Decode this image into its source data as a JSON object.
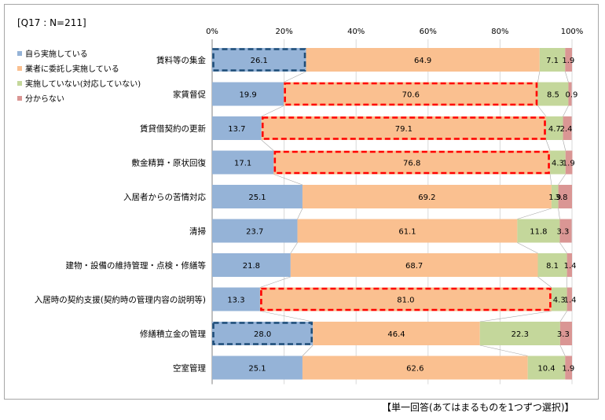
{
  "header": {
    "question_label": "[Q17 : N=211]"
  },
  "footnote": "【単一回答(あてはまるものを1つずつ選択)】",
  "chart_data": {
    "type": "bar",
    "orientation": "horizontal",
    "stacked": "percent",
    "x_ticks": [
      "0%",
      "20%",
      "40%",
      "60%",
      "80%",
      "100%"
    ],
    "xlim": [
      0,
      100
    ],
    "legend_position": "left",
    "categories": [
      "賃料等の集金",
      "家賃督促",
      "賃貸借契約の更新",
      "敷金精算・原状回復",
      "入居者からの苦情対応",
      "清掃",
      "建物・設備の維持管理・点検・修繕等",
      "入居時の契約支援(契約時の管理内容の説明等)",
      "修繕積立金の管理",
      "空室管理"
    ],
    "series": [
      {
        "name": "自ら実施している",
        "color": "#95b3d7",
        "values": [
          26.1,
          19.9,
          13.7,
          17.1,
          25.1,
          23.7,
          21.8,
          13.3,
          28.0,
          25.1
        ]
      },
      {
        "name": "業者に委託し実施している",
        "color": "#fac090",
        "values": [
          64.9,
          70.6,
          79.1,
          76.8,
          69.2,
          61.1,
          68.7,
          81.0,
          46.4,
          62.6
        ]
      },
      {
        "name": "実施していない(対応していない)",
        "color": "#c4d79b",
        "values": [
          7.1,
          8.5,
          4.7,
          4.3,
          1.9,
          11.8,
          8.1,
          4.3,
          22.3,
          10.4
        ]
      },
      {
        "name": "分からない",
        "color": "#da9694",
        "values": [
          1.9,
          0.9,
          2.4,
          1.9,
          3.8,
          3.3,
          1.4,
          1.4,
          3.3,
          1.9
        ]
      }
    ],
    "value_labels": [
      [
        "26.1",
        "64.9",
        "7.1",
        "1.9"
      ],
      [
        "19.9",
        "70.6",
        "8.5",
        "0.9"
      ],
      [
        "13.7",
        "79.1",
        "4.7",
        "2.4"
      ],
      [
        "17.1",
        "76.8",
        "4.3",
        "1.9"
      ],
      [
        "25.1",
        "69.2",
        "1.9",
        "3.8"
      ],
      [
        "23.7",
        "61.1",
        "11.8",
        "3.3"
      ],
      [
        "21.8",
        "68.7",
        "8.1",
        "1.4"
      ],
      [
        "13.3",
        "81.0",
        "4.3",
        "1.4"
      ],
      [
        "28.0",
        "46.4",
        "22.3",
        "3.3"
      ],
      [
        "25.1",
        "62.6",
        "10.4",
        "1.9"
      ]
    ],
    "highlights": [
      {
        "category": "賃料等の集金",
        "series": "自ら実施している",
        "color": "#1f4e79"
      },
      {
        "category": "家賃督促",
        "series": "業者に委託し実施している",
        "color": "#ff0000"
      },
      {
        "category": "賃貸借契約の更新",
        "series": "業者に委託し実施している",
        "color": "#ff0000"
      },
      {
        "category": "敷金精算・原状回復",
        "series": "業者に委託し実施している",
        "color": "#ff0000"
      },
      {
        "category": "入居時の契約支援(契約時の管理内容の説明等)",
        "series": "業者に委託し実施している",
        "color": "#ff0000"
      },
      {
        "category": "修繕積立金の管理",
        "series": "自ら実施している",
        "color": "#1f4e79"
      }
    ]
  }
}
